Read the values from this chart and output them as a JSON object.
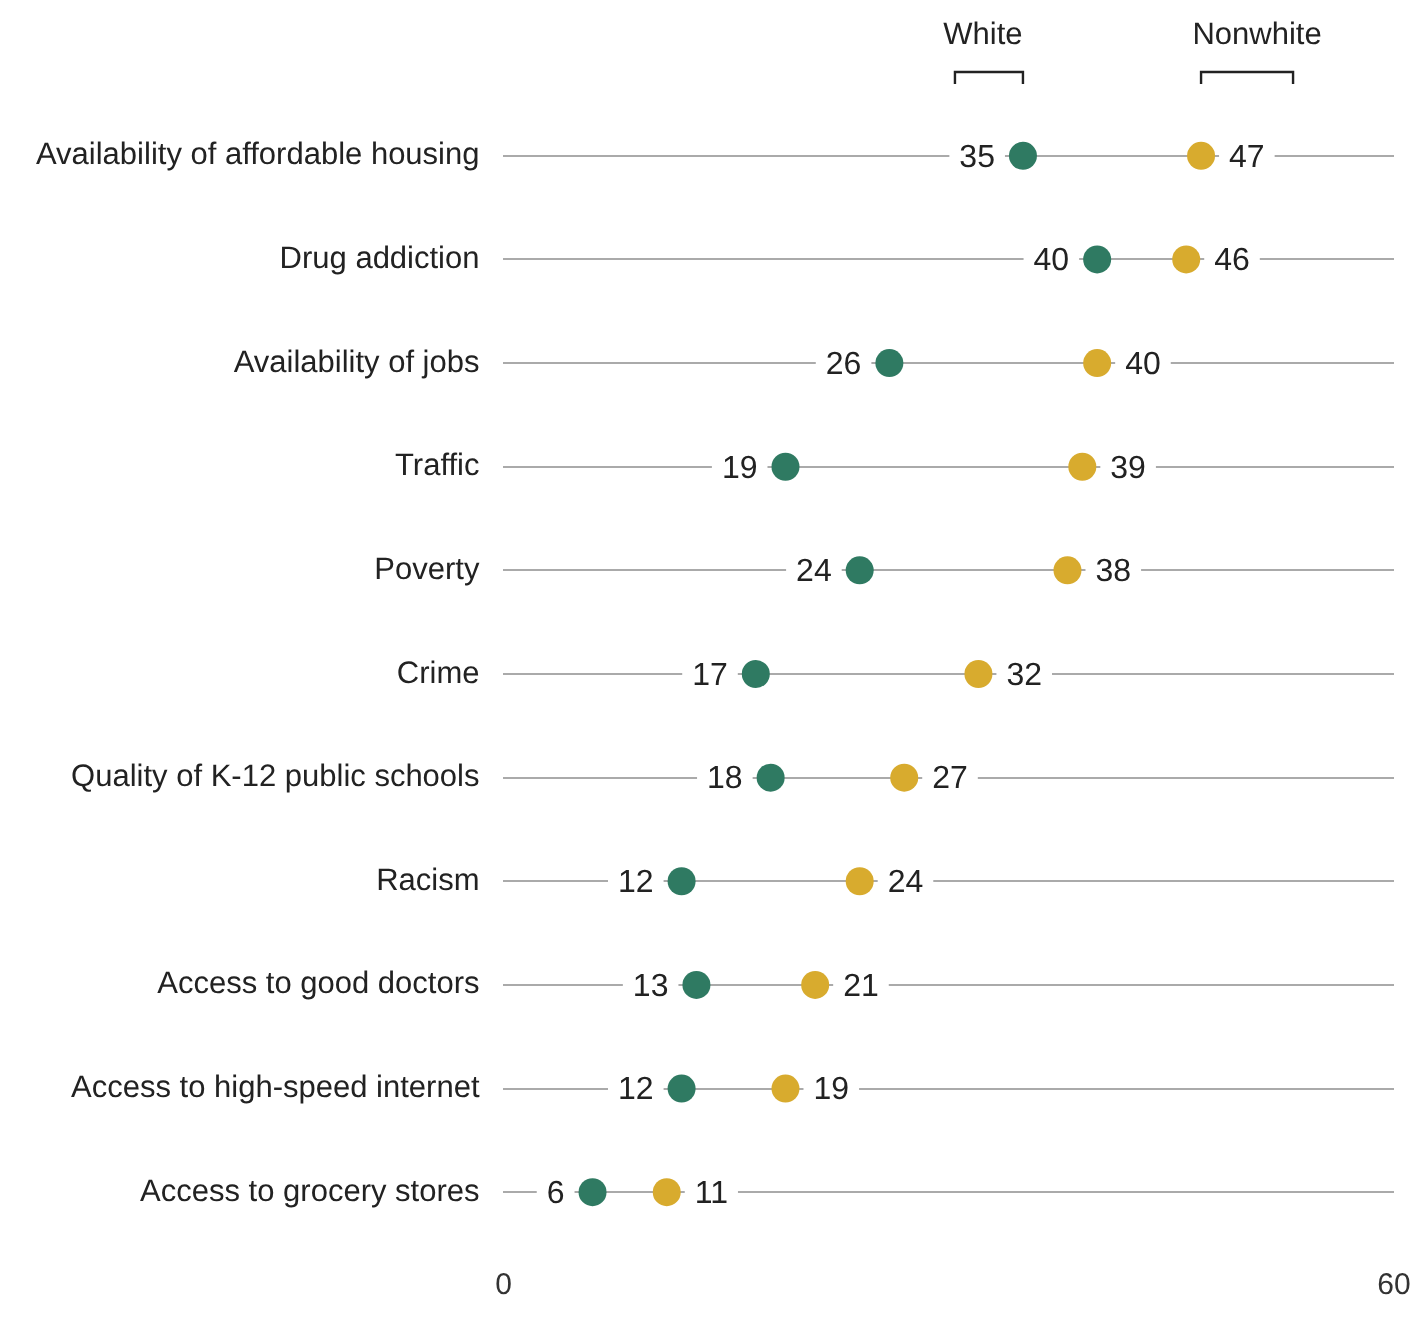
{
  "chart_data": {
    "type": "scatter",
    "orientation": "horizontal",
    "categories": [
      "Availability of affordable housing",
      "Drug addiction",
      "Availability of jobs",
      "Traffic",
      "Poverty",
      "Crime",
      "Quality of K-12 public schools",
      "Racism",
      "Access to good doctors",
      "Access to high-speed internet",
      "Access to grocery stores"
    ],
    "series": [
      {
        "name": "White",
        "color": "#2f7a62",
        "values": [
          35,
          40,
          26,
          19,
          24,
          17,
          18,
          12,
          13,
          12,
          6
        ]
      },
      {
        "name": "Nonwhite",
        "color": "#d8ab2e",
        "values": [
          47,
          46,
          40,
          39,
          38,
          32,
          27,
          24,
          21,
          19,
          11
        ]
      }
    ],
    "xlim": [
      0,
      60
    ],
    "xticks": [
      0,
      60
    ],
    "grid": "y",
    "legend": "top",
    "data_labels": true,
    "marker": "circle"
  }
}
